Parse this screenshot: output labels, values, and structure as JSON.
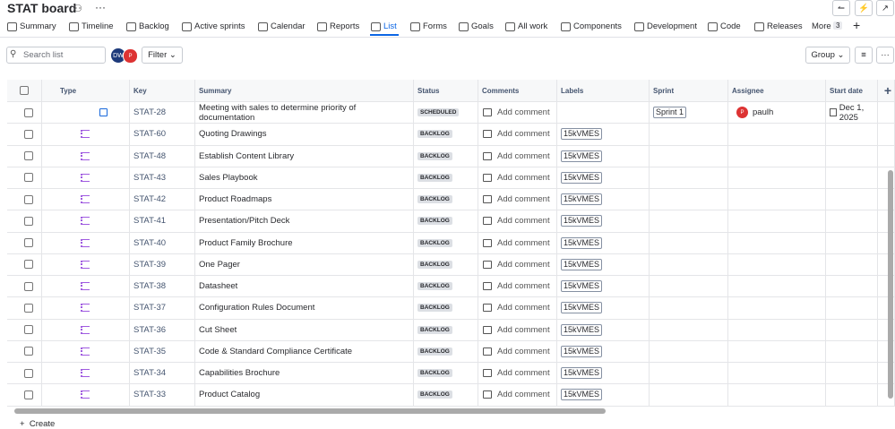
{
  "header": {
    "title": "STAT board"
  },
  "tabs": [
    "Summary",
    "Timeline",
    "Backlog",
    "Active sprints",
    "Calendar",
    "Reports",
    "List",
    "Forms",
    "Goals",
    "All work",
    "Components",
    "Development",
    "Code",
    "Releases"
  ],
  "more": {
    "label": "More",
    "count": "3"
  },
  "toolbar": {
    "search_placeholder": "Search list",
    "avatars": [
      "DW",
      "P"
    ],
    "filter": "Filter",
    "group": "Group"
  },
  "table": {
    "columns": [
      "Type",
      "Key",
      "Summary",
      "Status",
      "Comments",
      "Labels",
      "Sprint",
      "Assignee",
      "Start date"
    ],
    "rows": [
      {
        "key": "STAT-28",
        "summary": "Meeting with sales to determine priority of documentation",
        "status": "SCHEDULED",
        "comment": "Add comment",
        "sprint": "Sprint 1",
        "assignee_avatar": "P",
        "assignee": "paulh",
        "start_date": "Dec 1, 2025"
      },
      {
        "key": "STAT-60",
        "summary": "Quoting Drawings",
        "status": "BACKLOG",
        "comment": "Add comment",
        "label": "15kVMES"
      },
      {
        "key": "STAT-48",
        "summary": "Establish Content Library",
        "status": "BACKLOG",
        "comment": "Add comment",
        "label": "15kVMES"
      },
      {
        "key": "STAT-43",
        "summary": "Sales Playbook",
        "status": "BACKLOG",
        "comment": "Add comment",
        "label": "15kVMES"
      },
      {
        "key": "STAT-42",
        "summary": "Product Roadmaps",
        "status": "BACKLOG",
        "comment": "Add comment",
        "label": "15kVMES"
      },
      {
        "key": "STAT-41",
        "summary": "Presentation/Pitch Deck",
        "status": "BACKLOG",
        "comment": "Add comment",
        "label": "15kVMES"
      },
      {
        "key": "STAT-40",
        "summary": "Product Family Brochure",
        "status": "BACKLOG",
        "comment": "Add comment",
        "label": "15kVMES"
      },
      {
        "key": "STAT-39",
        "summary": "One Pager",
        "status": "BACKLOG",
        "comment": "Add comment",
        "label": "15kVMES"
      },
      {
        "key": "STAT-38",
        "summary": "Datasheet",
        "status": "BACKLOG",
        "comment": "Add comment",
        "label": "15kVMES"
      },
      {
        "key": "STAT-37",
        "summary": "Configuration Rules Document",
        "status": "BACKLOG",
        "comment": "Add comment",
        "label": "15kVMES"
      },
      {
        "key": "STAT-36",
        "summary": "Cut Sheet",
        "status": "BACKLOG",
        "comment": "Add comment",
        "label": "15kVMES"
      },
      {
        "key": "STAT-35",
        "summary": "Code & Standard Compliance Certificate",
        "status": "BACKLOG",
        "comment": "Add comment",
        "label": "15kVMES"
      },
      {
        "key": "STAT-34",
        "summary": "Capabilities Brochure",
        "status": "BACKLOG",
        "comment": "Add comment",
        "label": "15kVMES"
      },
      {
        "key": "STAT-33",
        "summary": "Product Catalog",
        "status": "BACKLOG",
        "comment": "Add comment",
        "label": "15kVMES"
      }
    ]
  },
  "footer": {
    "create": "Create"
  }
}
